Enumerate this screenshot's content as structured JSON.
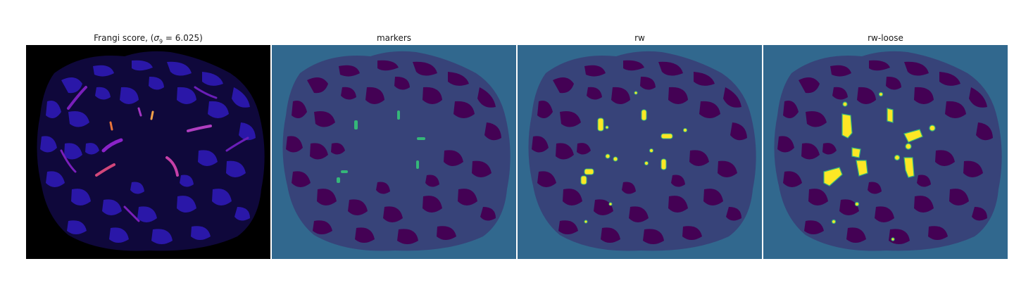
{
  "figure": {
    "panels": [
      {
        "key": "frangi",
        "title_prefix": "Frangi score, (",
        "title_sigma": "σ",
        "title_sub": "9",
        "title_suffix": " = 6.025)"
      },
      {
        "key": "markers",
        "title": "markers"
      },
      {
        "key": "rw",
        "title": "rw"
      },
      {
        "key": "rw_loose",
        "title": "rw-loose"
      }
    ]
  },
  "colors": {
    "viridis_bg": "#31688e",
    "viridis_dark": "#440154",
    "viridis_green": "#35b779",
    "viridis_yellow": "#fde725",
    "magma_bg": "#000000",
    "magma_blue": "#2a17a8",
    "magma_purple": "#8a22c8",
    "magma_orange": "#f5a24a"
  }
}
